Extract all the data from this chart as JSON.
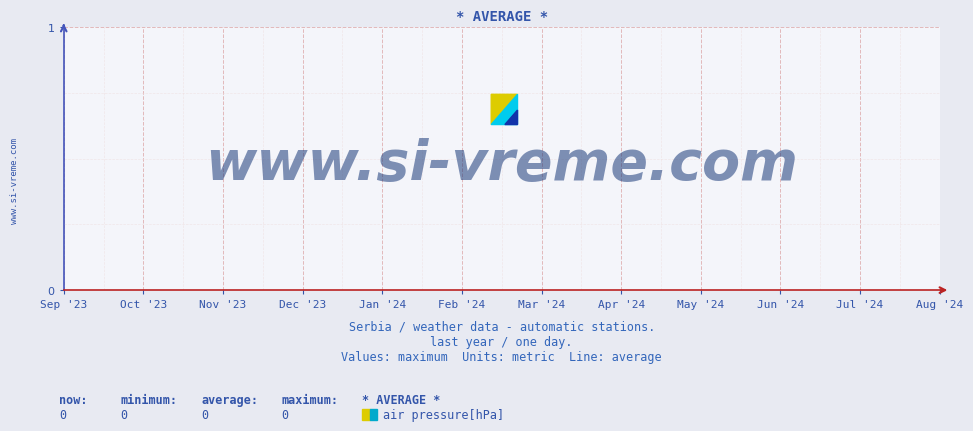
{
  "title": "* AVERAGE *",
  "title_color": "#3355aa",
  "title_fontsize": 10,
  "background_color": "#e8eaf2",
  "plot_background_color": "#f4f5fa",
  "ylim": [
    0,
    1
  ],
  "yticks": [
    0,
    1
  ],
  "xlabel_text_lines": [
    "Serbia / weather data - automatic stations.",
    "last year / one day.",
    "Values: maximum  Units: metric  Line: average"
  ],
  "xlabel_color": "#3366bb",
  "xlabel_fontsize": 8.5,
  "grid_color_major": "#ddaaaa",
  "grid_color_minor": "#eedddd",
  "spine_color_left": "#4455bb",
  "spine_color_bottom": "#bb2222",
  "tick_color": "#3355aa",
  "tick_fontsize": 8,
  "watermark_text": "www.si-vreme.com",
  "watermark_color": "#1a3a7a",
  "watermark_fontsize": 40,
  "watermark_alpha": 0.55,
  "side_text": "www.si-vreme.com",
  "side_text_color": "#3355aa",
  "side_text_fontsize": 6.5,
  "xtick_labels": [
    "Sep '23",
    "Oct '23",
    "Nov '23",
    "Dec '23",
    "Jan '24",
    "Feb '24",
    "Mar '24",
    "Apr '24",
    "May '24",
    "Jun '24",
    "Jul '24",
    "Aug '24"
  ],
  "xtick_positions": [
    0.0,
    0.0909,
    0.1818,
    0.2727,
    0.3636,
    0.4545,
    0.5455,
    0.6364,
    0.7273,
    0.8182,
    0.9091,
    1.0
  ],
  "legend_labels": [
    "now:",
    "minimum:",
    "average:",
    "maximum:",
    "* AVERAGE *"
  ],
  "legend_values": [
    "0",
    "0",
    "0",
    "0"
  ],
  "legend_series_label": "air pressure[hPa]",
  "legend_swatch_color1": "#ddcc00",
  "legend_swatch_color2": "#00aacc",
  "legend_color": "#3355aa",
  "legend_fontsize": 8.5,
  "logo_color_yellow": "#ddcc00",
  "logo_color_cyan": "#00ccee",
  "logo_color_darkblue": "#1133aa",
  "arrow_color": "#bb2222",
  "arrow_color_left": "#4455bb"
}
